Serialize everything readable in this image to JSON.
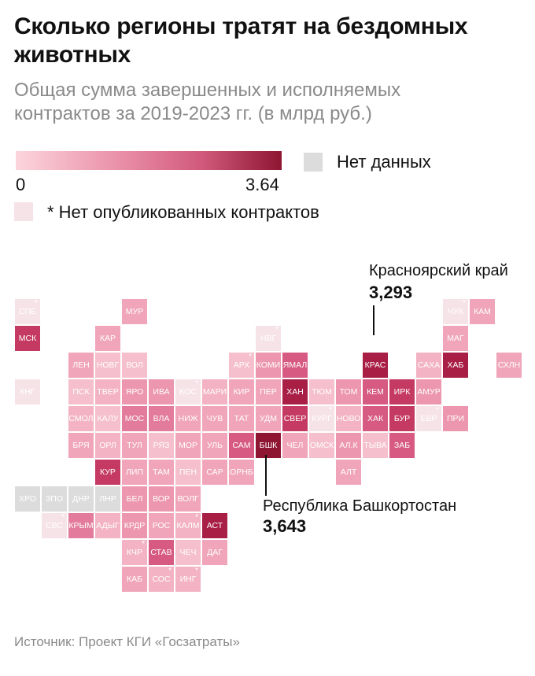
{
  "title": "Сколько регионы тратят на бездомных животных",
  "subtitle": "Общая сумма завершенных и исполняемых контрактов за 2019-2023 гг. (в млрд руб.)",
  "legend": {
    "min_label": "0",
    "max_label": "3.64",
    "no_data_label": "Нет данных",
    "no_contracts_label": "* Нет опубликованных контрактов",
    "colors": {
      "low": "#fcd5dd",
      "high": "#8e1633",
      "no_data": "#dcdcdc",
      "no_contracts": "#f6e3e8"
    }
  },
  "annotations": {
    "krasnoyarsk": {
      "name": "Красноярский край",
      "value": "3,293"
    },
    "bashkortostan": {
      "name": "Республика Башкортостан",
      "value": "3,643"
    }
  },
  "source": "Источник: Проект КГИ «Госзатраты»",
  "map": {
    "regions": [
      {
        "label": "СПБ",
        "col": 0,
        "row": 0,
        "color": "#f6e3e8",
        "star": true
      },
      {
        "label": "МСК",
        "col": 0,
        "row": 1,
        "color": "#c43a62",
        "star": false
      },
      {
        "label": "КНГ",
        "col": 0,
        "row": 3,
        "color": "#f6e3e8",
        "star": false
      },
      {
        "label": "ХРО",
        "col": 0,
        "row": 7,
        "color": "#dcdcdc",
        "star": false
      },
      {
        "label": "ЗПО",
        "col": 1,
        "row": 7,
        "color": "#dcdcdc",
        "star": false
      },
      {
        "label": "СВС",
        "col": 1,
        "row": 8,
        "color": "#f6e3e8",
        "star": true
      },
      {
        "label": "ЛЕН",
        "col": 2,
        "row": 2,
        "color": "#f0a5bb",
        "star": false
      },
      {
        "label": "ПСК",
        "col": 2,
        "row": 3,
        "color": "#f5bfcd",
        "star": false
      },
      {
        "label": "СМОЛ",
        "col": 2,
        "row": 4,
        "color": "#f3b3c4",
        "star": false
      },
      {
        "label": "БРЯ",
        "col": 2,
        "row": 5,
        "color": "#f0a5bb",
        "star": false
      },
      {
        "label": "ДНР",
        "col": 2,
        "row": 7,
        "color": "#dcdcdc",
        "star": false
      },
      {
        "label": "КРЫМ",
        "col": 2,
        "row": 8,
        "color": "#e27b9c",
        "star": false
      },
      {
        "label": "КАР",
        "col": 3,
        "row": 1,
        "color": "#f0a5bb",
        "star": false
      },
      {
        "label": "НОВГ",
        "col": 3,
        "row": 2,
        "color": "#f5bfcd",
        "star": false
      },
      {
        "label": "ТВЕР",
        "col": 3,
        "row": 3,
        "color": "#f3b3c4",
        "star": false
      },
      {
        "label": "КАЛУ",
        "col": 3,
        "row": 4,
        "color": "#f5bfcd",
        "star": false
      },
      {
        "label": "ОРЛ",
        "col": 3,
        "row": 5,
        "color": "#f3b3c4",
        "star": false
      },
      {
        "label": "КУР",
        "col": 3,
        "row": 6,
        "color": "#c43a62",
        "star": false
      },
      {
        "label": "ЛНР",
        "col": 3,
        "row": 7,
        "color": "#dcdcdc",
        "star": false
      },
      {
        "label": "АДЫГ",
        "col": 3,
        "row": 8,
        "color": "#f3b3c4",
        "star": false
      },
      {
        "label": "МУР",
        "col": 4,
        "row": 0,
        "color": "#f0a5bb",
        "star": false
      },
      {
        "label": "ВОЛ",
        "col": 4,
        "row": 2,
        "color": "#f5bfcd",
        "star": false
      },
      {
        "label": "ЯРО",
        "col": 4,
        "row": 3,
        "color": "#ec96af",
        "star": false
      },
      {
        "label": "МОС",
        "col": 4,
        "row": 4,
        "color": "#e27b9c",
        "star": false
      },
      {
        "label": "ТУЛ",
        "col": 4,
        "row": 5,
        "color": "#f0a5bb",
        "star": false
      },
      {
        "label": "ЛИП",
        "col": 4,
        "row": 6,
        "color": "#f0a5bb",
        "star": false
      },
      {
        "label": "БЕЛ",
        "col": 4,
        "row": 7,
        "color": "#ec96af",
        "star": false
      },
      {
        "label": "КРДР",
        "col": 4,
        "row": 8,
        "color": "#ec96af",
        "star": false
      },
      {
        "label": "КЧР",
        "col": 4,
        "row": 9,
        "color": "#f3b3c4",
        "star": true
      },
      {
        "label": "КАБ",
        "col": 4,
        "row": 10,
        "color": "#f0a5bb",
        "star": false
      },
      {
        "label": "ИВА",
        "col": 5,
        "row": 3,
        "color": "#ec96af",
        "star": false
      },
      {
        "label": "ВЛА",
        "col": 5,
        "row": 4,
        "color": "#e27b9c",
        "star": false
      },
      {
        "label": "РЯЗ",
        "col": 5,
        "row": 5,
        "color": "#f5bfcd",
        "star": false
      },
      {
        "label": "ТАМ",
        "col": 5,
        "row": 6,
        "color": "#f0a5bb",
        "star": false
      },
      {
        "label": "ВОР",
        "col": 5,
        "row": 7,
        "color": "#ec96af",
        "star": false
      },
      {
        "label": "РОС",
        "col": 5,
        "row": 8,
        "color": "#f0a5bb",
        "star": false
      },
      {
        "label": "СТАВ",
        "col": 5,
        "row": 9,
        "color": "#d65a82",
        "star": false
      },
      {
        "label": "СОС",
        "col": 5,
        "row": 10,
        "color": "#f3b3c4",
        "star": true
      },
      {
        "label": "КОС",
        "col": 6,
        "row": 3,
        "color": "#f6e3e8",
        "star": true
      },
      {
        "label": "НИЖ",
        "col": 6,
        "row": 4,
        "color": "#f0a5bb",
        "star": false
      },
      {
        "label": "МОР",
        "col": 6,
        "row": 5,
        "color": "#f0a5bb",
        "star": false
      },
      {
        "label": "ПЕН",
        "col": 6,
        "row": 6,
        "color": "#f5bfcd",
        "star": false
      },
      {
        "label": "ВОЛГ",
        "col": 6,
        "row": 7,
        "color": "#f0a5bb",
        "star": false
      },
      {
        "label": "КАЛМ",
        "col": 6,
        "row": 8,
        "color": "#f3b3c4",
        "star": true
      },
      {
        "label": "ЧЕЧ",
        "col": 6,
        "row": 9,
        "color": "#f5bfcd",
        "star": false
      },
      {
        "label": "ИНГ",
        "col": 6,
        "row": 10,
        "color": "#f3b3c4",
        "star": true
      },
      {
        "label": "МАРИ",
        "col": 7,
        "row": 3,
        "color": "#f3b3c4",
        "star": false
      },
      {
        "label": "ЧУВ",
        "col": 7,
        "row": 4,
        "color": "#f0a5bb",
        "star": false
      },
      {
        "label": "УЛЬ",
        "col": 7,
        "row": 5,
        "color": "#f0a5bb",
        "star": false
      },
      {
        "label": "САР",
        "col": 7,
        "row": 6,
        "color": "#f0a5bb",
        "star": false
      },
      {
        "label": "АСТ",
        "col": 7,
        "row": 8,
        "color": "#a81e45",
        "star": false
      },
      {
        "label": "ДАГ",
        "col": 7,
        "row": 9,
        "color": "#f0a5bb",
        "star": false
      },
      {
        "label": "АРХ",
        "col": 8,
        "row": 2,
        "color": "#f5bfcd",
        "star": true
      },
      {
        "label": "КИР",
        "col": 8,
        "row": 3,
        "color": "#f0a5bb",
        "star": false
      },
      {
        "label": "ТАТ",
        "col": 8,
        "row": 4,
        "color": "#f0a5bb",
        "star": false
      },
      {
        "label": "САМ",
        "col": 8,
        "row": 5,
        "color": "#d65a82",
        "star": false
      },
      {
        "label": "ОРНБ",
        "col": 8,
        "row": 6,
        "color": "#f0a5bb",
        "star": false
      },
      {
        "label": "НВГ",
        "col": 9,
        "row": 1,
        "color": "#f6e3e8",
        "star": true
      },
      {
        "label": "КОМИ",
        "col": 9,
        "row": 2,
        "color": "#ec96af",
        "star": false
      },
      {
        "label": "ПЕР",
        "col": 9,
        "row": 3,
        "color": "#f0a5bb",
        "star": false
      },
      {
        "label": "УДМ",
        "col": 9,
        "row": 4,
        "color": "#f0a5bb",
        "star": false
      },
      {
        "label": "БШК",
        "col": 9,
        "row": 5,
        "color": "#8e1633",
        "star": false
      },
      {
        "label": "ЯМАЛ",
        "col": 10,
        "row": 2,
        "color": "#d65a82",
        "star": false
      },
      {
        "label": "ХАН",
        "col": 10,
        "row": 3,
        "color": "#a81e45",
        "star": false
      },
      {
        "label": "СВЕР",
        "col": 10,
        "row": 4,
        "color": "#c43a62",
        "star": false
      },
      {
        "label": "ЧЕЛ",
        "col": 10,
        "row": 5,
        "color": "#f0a5bb",
        "star": false
      },
      {
        "label": "ТЮМ",
        "col": 11,
        "row": 3,
        "color": "#f5bfcd",
        "star": false
      },
      {
        "label": "КУРГ",
        "col": 11,
        "row": 4,
        "color": "#f6e3e8",
        "star": true
      },
      {
        "label": "ОМСК",
        "col": 11,
        "row": 5,
        "color": "#f5bfcd",
        "star": false
      },
      {
        "label": "ТОМ",
        "col": 12,
        "row": 3,
        "color": "#ec96af",
        "star": false
      },
      {
        "label": "НОВО",
        "col": 12,
        "row": 4,
        "color": "#f3b3c4",
        "star": false
      },
      {
        "label": "АЛ.К",
        "col": 12,
        "row": 5,
        "color": "#ec96af",
        "star": false
      },
      {
        "label": "АЛТ",
        "col": 12,
        "row": 6,
        "color": "#f0a5bb",
        "star": false
      },
      {
        "label": "КРАС",
        "col": 13,
        "row": 2,
        "color": "#a81e45",
        "star": false
      },
      {
        "label": "КЕМ",
        "col": 13,
        "row": 3,
        "color": "#d65a82",
        "star": false
      },
      {
        "label": "ХАК",
        "col": 13,
        "row": 4,
        "color": "#d65a82",
        "star": false
      },
      {
        "label": "ТЫВА",
        "col": 13,
        "row": 5,
        "color": "#f5bfcd",
        "star": false
      },
      {
        "label": "ИРК",
        "col": 14,
        "row": 3,
        "color": "#c43a62",
        "star": false
      },
      {
        "label": "БУР",
        "col": 14,
        "row": 4,
        "color": "#c43a62",
        "star": false
      },
      {
        "label": "ЗАБ",
        "col": 14,
        "row": 5,
        "color": "#d65a82",
        "star": false
      },
      {
        "label": "САХА",
        "col": 15,
        "row": 2,
        "color": "#f3b3c4",
        "star": false
      },
      {
        "label": "АМУР",
        "col": 15,
        "row": 3,
        "color": "#ec96af",
        "star": false
      },
      {
        "label": "ЕВР",
        "col": 15,
        "row": 4,
        "color": "#f6e3e8",
        "star": true
      },
      {
        "label": "ЧУК",
        "col": 16,
        "row": 0,
        "color": "#f6e3e8",
        "star": true
      },
      {
        "label": "МАГ",
        "col": 16,
        "row": 1,
        "color": "#f0a5bb",
        "star": false
      },
      {
        "label": "ХАБ",
        "col": 16,
        "row": 2,
        "color": "#a81e45",
        "star": false
      },
      {
        "label": "ПРИ",
        "col": 16,
        "row": 4,
        "color": "#ec96af",
        "star": false
      },
      {
        "label": "КАМ",
        "col": 17,
        "row": 0,
        "color": "#f0a5bb",
        "star": false
      },
      {
        "label": "СХЛН",
        "col": 18,
        "row": 2,
        "color": "#f0a5bb",
        "star": false
      }
    ]
  }
}
